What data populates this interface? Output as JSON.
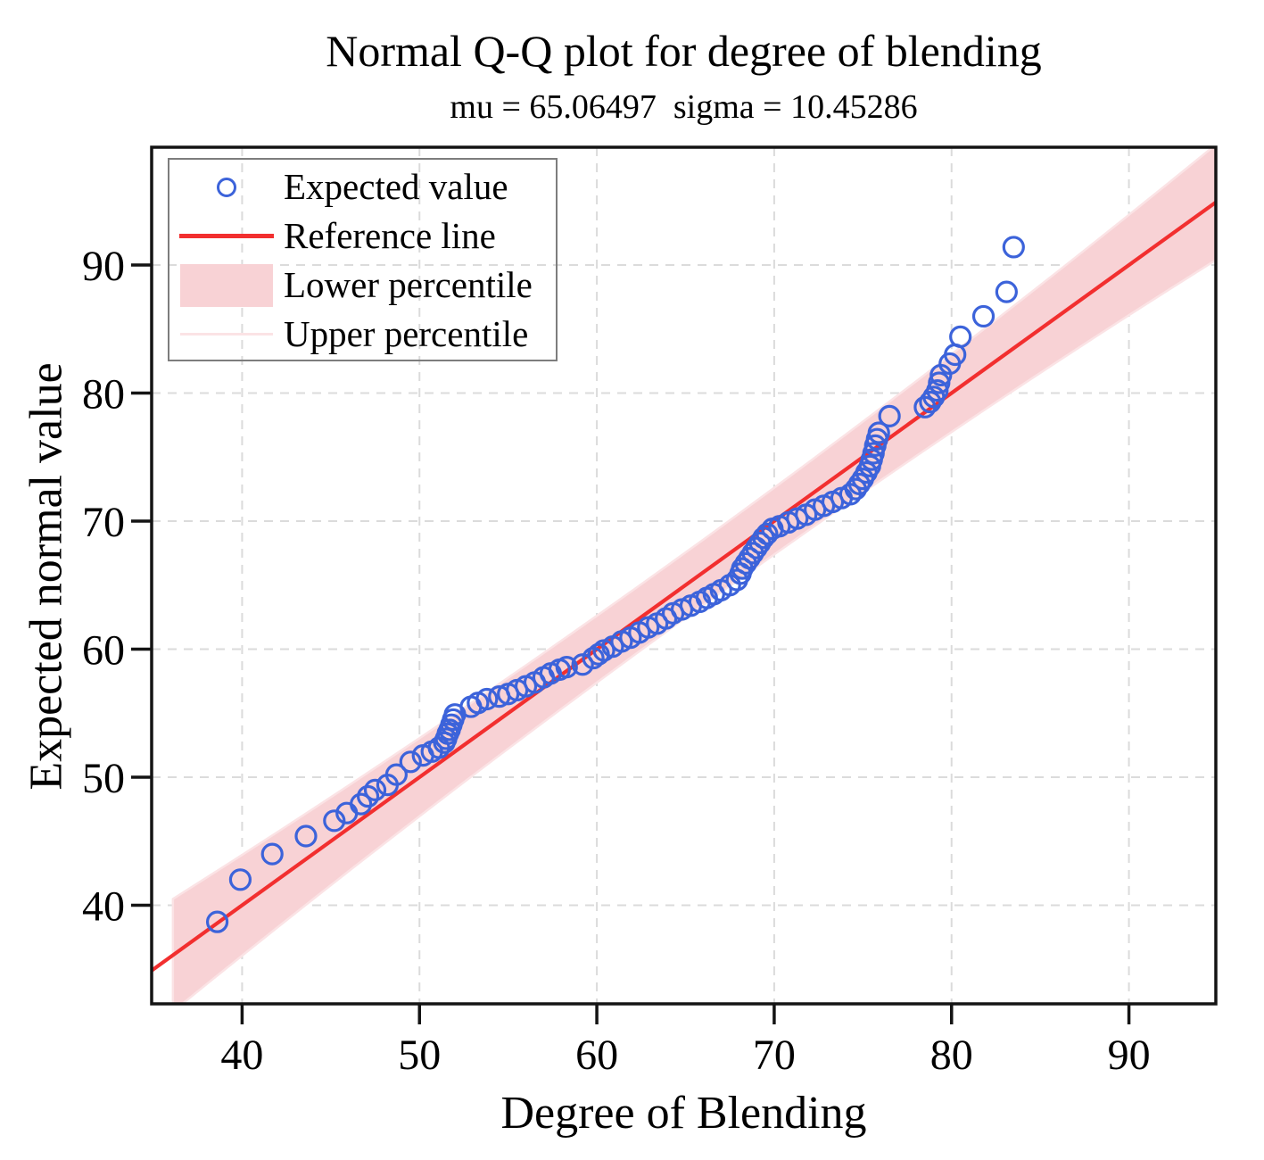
{
  "title": "Normal Q-Q plot for degree of blending",
  "subtitle": "mu = 65.06497  sigma = 10.45286",
  "stats": {
    "mu": 65.06497,
    "sigma": 10.45286
  },
  "axes": {
    "x": {
      "label": "Degree of Blending",
      "tick_labels": [
        "40",
        "50",
        "60",
        "70",
        "80",
        "90"
      ]
    },
    "y": {
      "label": "Expected normal value",
      "tick_labels": [
        "40",
        "50",
        "60",
        "70",
        "80",
        "90"
      ]
    }
  },
  "legend": {
    "items": [
      {
        "label": "Expected value",
        "type": "marker"
      },
      {
        "label": "Reference line",
        "type": "line"
      },
      {
        "label": "Lower percentile",
        "type": "band"
      },
      {
        "label": "Upper percentile",
        "type": "faint-line"
      }
    ]
  },
  "colors": {
    "marker": "#3c63da",
    "reference_line": "#f22f2f",
    "band_fill": "#f8d2d5",
    "band_edge": "#fbe3e5",
    "grid": "#dbdbdb",
    "frame": "#141414",
    "text": "#000000"
  },
  "chart_data": {
    "type": "scatter",
    "title": "Normal Q-Q plot for degree of blending",
    "subtitle": "mu = 65.06497  sigma = 10.45286",
    "xlabel": "Degree of Blending",
    "ylabel": "Expected normal value",
    "xlim": [
      34.9,
      94.9
    ],
    "ylim": [
      32.3,
      99.2
    ],
    "x_ticks": [
      40,
      50,
      60,
      70,
      80,
      90
    ],
    "y_ticks": [
      40,
      50,
      60,
      70,
      80,
      90
    ],
    "grid": true,
    "legend_position": "upper-left",
    "series": [
      {
        "name": "Expected value",
        "marker": "open-circle",
        "color": "#3c63da",
        "points": [
          [
            38.6,
            38.7
          ],
          [
            39.9,
            42.0
          ],
          [
            41.7,
            44.0
          ],
          [
            43.6,
            45.4
          ],
          [
            45.2,
            46.6
          ],
          [
            45.9,
            47.2
          ],
          [
            46.7,
            47.9
          ],
          [
            47.1,
            48.5
          ],
          [
            47.5,
            49.0
          ],
          [
            48.2,
            49.4
          ],
          [
            48.7,
            50.2
          ],
          [
            49.5,
            51.2
          ],
          [
            50.2,
            51.7
          ],
          [
            50.7,
            52.0
          ],
          [
            51.1,
            52.3
          ],
          [
            51.4,
            52.7
          ],
          [
            51.5,
            53.0
          ],
          [
            51.6,
            53.4
          ],
          [
            51.7,
            53.7
          ],
          [
            51.8,
            54.1
          ],
          [
            51.9,
            54.5
          ],
          [
            52.0,
            54.9
          ],
          [
            52.9,
            55.5
          ],
          [
            53.3,
            55.8
          ],
          [
            53.8,
            56.1
          ],
          [
            54.5,
            56.3
          ],
          [
            55.0,
            56.5
          ],
          [
            55.5,
            56.8
          ],
          [
            56.0,
            57.1
          ],
          [
            56.5,
            57.4
          ],
          [
            57.0,
            57.8
          ],
          [
            57.4,
            58.1
          ],
          [
            57.9,
            58.4
          ],
          [
            58.3,
            58.6
          ],
          [
            59.2,
            58.8
          ],
          [
            59.8,
            59.3
          ],
          [
            60.1,
            59.6
          ],
          [
            60.4,
            59.9
          ],
          [
            60.9,
            60.2
          ],
          [
            61.4,
            60.6
          ],
          [
            61.9,
            60.9
          ],
          [
            62.4,
            61.3
          ],
          [
            62.9,
            61.7
          ],
          [
            63.4,
            62.0
          ],
          [
            63.9,
            62.4
          ],
          [
            64.3,
            62.8
          ],
          [
            64.8,
            63.1
          ],
          [
            65.3,
            63.4
          ],
          [
            65.8,
            63.7
          ],
          [
            66.2,
            64.0
          ],
          [
            66.6,
            64.3
          ],
          [
            67.0,
            64.6
          ],
          [
            67.5,
            65.0
          ],
          [
            67.9,
            65.4
          ],
          [
            68.1,
            65.9
          ],
          [
            68.2,
            66.3
          ],
          [
            68.4,
            66.7
          ],
          [
            68.6,
            67.1
          ],
          [
            68.8,
            67.5
          ],
          [
            69.0,
            67.9
          ],
          [
            69.2,
            68.3
          ],
          [
            69.4,
            68.7
          ],
          [
            69.6,
            69.0
          ],
          [
            69.9,
            69.4
          ],
          [
            70.3,
            69.6
          ],
          [
            70.8,
            69.9
          ],
          [
            71.3,
            70.2
          ],
          [
            71.8,
            70.5
          ],
          [
            72.3,
            70.9
          ],
          [
            72.8,
            71.2
          ],
          [
            73.3,
            71.5
          ],
          [
            73.8,
            71.8
          ],
          [
            74.3,
            72.1
          ],
          [
            74.6,
            72.5
          ],
          [
            74.8,
            72.9
          ],
          [
            75.0,
            73.3
          ],
          [
            75.2,
            73.8
          ],
          [
            75.4,
            74.3
          ],
          [
            75.5,
            74.8
          ],
          [
            75.6,
            75.3
          ],
          [
            75.7,
            75.9
          ],
          [
            75.8,
            76.4
          ],
          [
            75.9,
            76.9
          ],
          [
            76.5,
            78.2
          ],
          [
            78.5,
            78.9
          ],
          [
            78.8,
            79.3
          ],
          [
            79.0,
            79.7
          ],
          [
            79.2,
            80.2
          ],
          [
            79.3,
            80.8
          ],
          [
            79.4,
            81.4
          ],
          [
            79.9,
            82.3
          ],
          [
            80.2,
            83.0
          ],
          [
            80.5,
            84.4
          ],
          [
            81.8,
            86.0
          ],
          [
            83.1,
            87.9
          ],
          [
            83.5,
            91.4
          ]
        ]
      }
    ],
    "reference_line": {
      "name": "Reference line",
      "slope": 1,
      "intercept": 0,
      "x_range": [
        34.9,
        94.9
      ],
      "color": "#f22f2f"
    },
    "confidence_band": {
      "lower_name": "Lower percentile",
      "upper_name": "Upper percentile",
      "center": "reference_line",
      "half_width_at_mu": 2.55,
      "half_width_curvature": 0.0022,
      "x_range": [
        36.1,
        94.9
      ],
      "fill": "#f8d2d5",
      "edge": "#fbe3e5"
    }
  }
}
